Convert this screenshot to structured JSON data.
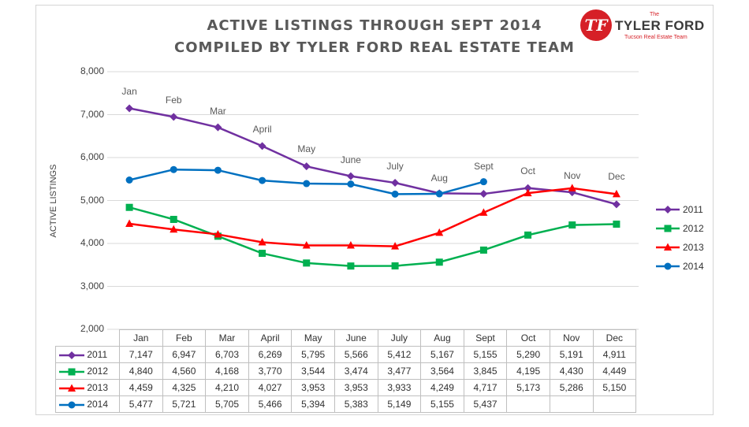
{
  "title_line1": "ACTIVE LISTINGS THROUGH SEPT 2014",
  "title_line2": "COMPILED BY TYLER FORD REAL ESTATE TEAM",
  "logo": {
    "the": "The",
    "name": "TYLER FORD",
    "tagline": "Tucson Real Estate Team",
    "mark": "TF"
  },
  "chart_data": {
    "type": "line",
    "title": "ACTIVE LISTINGS THROUGH SEPT 2014",
    "subtitle": "COMPILED BY TYLER FORD REAL ESTATE TEAM",
    "ylabel": "ACTIVE LISTINGS",
    "ylim": [
      2000,
      8000
    ],
    "yticks": [
      "2,000",
      "3,000",
      "4,000",
      "5,000",
      "6,000",
      "7,000",
      "8,000"
    ],
    "categories": [
      "Jan",
      "Feb",
      "Mar",
      "April",
      "May",
      "June",
      "July",
      "Aug",
      "Sept",
      "Oct",
      "Nov",
      "Dec"
    ],
    "grid": true,
    "legend_position": "right",
    "series": [
      {
        "name": "2011",
        "color": "#7030a0",
        "marker": "diamond",
        "values": [
          7147,
          6947,
          6703,
          6269,
          5795,
          5566,
          5412,
          5167,
          5155,
          5290,
          5191,
          4911
        ],
        "labels": [
          "7,147",
          "6,947",
          "6,703",
          "6,269",
          "5,795",
          "5,566",
          "5,412",
          "5,167",
          "5,155",
          "5,290",
          "5,191",
          "4,911"
        ]
      },
      {
        "name": "2012",
        "color": "#00b050",
        "marker": "square",
        "values": [
          4840,
          4560,
          4168,
          3770,
          3544,
          3474,
          3477,
          3564,
          3845,
          4195,
          4430,
          4449
        ],
        "labels": [
          "4,840",
          "4,560",
          "4,168",
          "3,770",
          "3,544",
          "3,474",
          "3,477",
          "3,564",
          "3,845",
          "4,195",
          "4,430",
          "4,449"
        ]
      },
      {
        "name": "2013",
        "color": "#ff0000",
        "marker": "triangle",
        "values": [
          4459,
          4325,
          4210,
          4027,
          3953,
          3953,
          3933,
          4249,
          4717,
          5173,
          5286,
          5150
        ],
        "labels": [
          "4,459",
          "4,325",
          "4,210",
          "4,027",
          "3,953",
          "3,953",
          "3,933",
          "4,249",
          "4,717",
          "5,173",
          "5,286",
          "5,150"
        ]
      },
      {
        "name": "2014",
        "color": "#0070c0",
        "marker": "circle",
        "values": [
          5477,
          5721,
          5705,
          5466,
          5394,
          5383,
          5149,
          5155,
          5437,
          null,
          null,
          null
        ],
        "labels": [
          "5,477",
          "5,721",
          "5,705",
          "5,466",
          "5,394",
          "5,383",
          "5,149",
          "5,155",
          "5,437",
          "",
          "",
          ""
        ]
      }
    ]
  }
}
